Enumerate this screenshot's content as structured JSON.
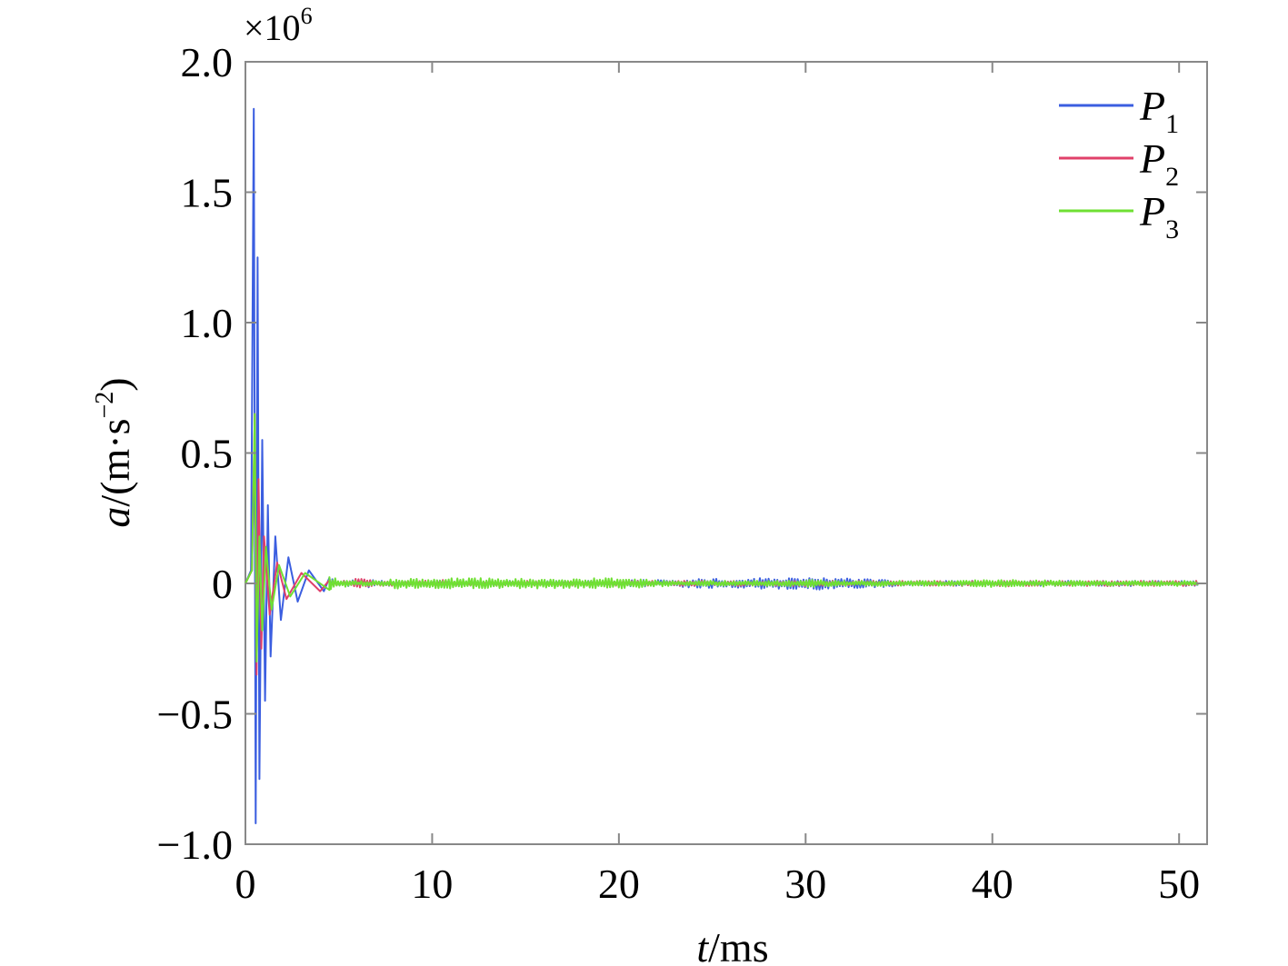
{
  "chart_data": {
    "type": "line",
    "title": "",
    "xlabel": {
      "var": "t",
      "unit": "/ms"
    },
    "ylabel": {
      "var": "a",
      "unit": "/(m·s",
      "unit_sup": "−2",
      "unit_close": ")"
    },
    "y_multiplier": {
      "base": "×10",
      "exp": "6"
    },
    "xlim": [
      0,
      51.5
    ],
    "ylim": [
      -1.0,
      2.0
    ],
    "x_ticks": [
      0,
      10,
      20,
      30,
      40,
      50
    ],
    "x_tick_labels": [
      "0",
      "10",
      "20",
      "30",
      "40",
      "50"
    ],
    "y_ticks": [
      -1.0,
      -0.5,
      0,
      0.5,
      1.0,
      1.5,
      2.0
    ],
    "y_tick_labels": [
      "−1.0",
      "−0.5",
      "0",
      "0.5",
      "1.0",
      "1.5",
      "2.0"
    ],
    "grid": false,
    "legend_position": "top-right",
    "series": [
      {
        "name": "P",
        "sub": "1",
        "color": "#3b5ee0",
        "points": [
          [
            0,
            0
          ],
          [
            0.3,
            0.05
          ],
          [
            0.45,
            1.82
          ],
          [
            0.55,
            -0.92
          ],
          [
            0.65,
            1.25
          ],
          [
            0.75,
            -0.75
          ],
          [
            0.9,
            0.55
          ],
          [
            1.05,
            -0.45
          ],
          [
            1.2,
            0.3
          ],
          [
            1.35,
            -0.28
          ],
          [
            1.6,
            0.18
          ],
          [
            1.9,
            -0.14
          ],
          [
            2.3,
            0.1
          ],
          [
            2.8,
            -0.07
          ],
          [
            3.4,
            0.05
          ],
          [
            4.2,
            -0.03
          ],
          [
            6,
            0.02
          ],
          [
            10,
            -0.015
          ],
          [
            20,
            0.012
          ],
          [
            31.5,
            0.025
          ],
          [
            40,
            -0.01
          ],
          [
            51,
            0
          ]
        ]
      },
      {
        "name": "P",
        "sub": "2",
        "color": "#e0406a",
        "points": [
          [
            0,
            0
          ],
          [
            0.35,
            0.05
          ],
          [
            0.5,
            0.65
          ],
          [
            0.6,
            -0.35
          ],
          [
            0.7,
            0.4
          ],
          [
            0.85,
            -0.25
          ],
          [
            1.0,
            0.18
          ],
          [
            1.3,
            -0.12
          ],
          [
            1.7,
            0.08
          ],
          [
            2.2,
            -0.06
          ],
          [
            3,
            0.04
          ],
          [
            4,
            -0.03
          ],
          [
            6,
            0.02
          ],
          [
            10,
            -0.015
          ],
          [
            20,
            0.012
          ],
          [
            30,
            -0.012
          ],
          [
            40,
            0.012
          ],
          [
            51,
            0
          ]
        ]
      },
      {
        "name": "P",
        "sub": "3",
        "color": "#6fe033",
        "points": [
          [
            0,
            0
          ],
          [
            0.35,
            0.05
          ],
          [
            0.5,
            0.65
          ],
          [
            0.6,
            -0.3
          ],
          [
            0.75,
            0.18
          ],
          [
            0.9,
            -0.18
          ],
          [
            1.1,
            0.14
          ],
          [
            1.4,
            -0.1
          ],
          [
            1.8,
            0.07
          ],
          [
            2.4,
            -0.05
          ],
          [
            3.2,
            0.04
          ],
          [
            4.5,
            -0.025
          ],
          [
            8,
            0.02
          ],
          [
            20,
            0.02
          ],
          [
            30,
            -0.015
          ],
          [
            40,
            0.015
          ],
          [
            51,
            0.005
          ]
        ]
      }
    ]
  }
}
